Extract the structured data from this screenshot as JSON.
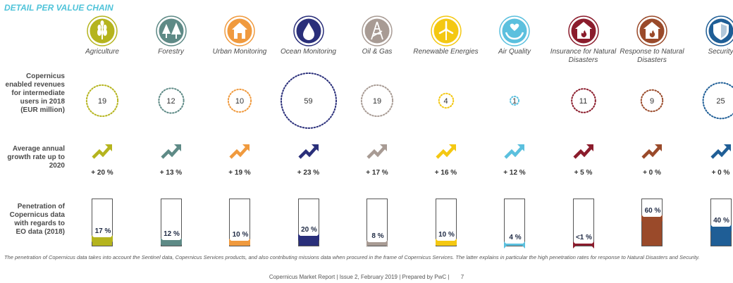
{
  "title": "DETAIL PER VALUE CHAIN",
  "row_labels": {
    "revenues": "Copernicus enabled revenues for intermediate users in 2018 (EUR million)",
    "growth": "Average annual growth rate up to 2020",
    "penetration": "Penetration of Copernicus data with regards to EO data (2018)"
  },
  "value_chains": [
    {
      "name": "Agriculture",
      "icon": "wheat-icon",
      "color": "#b5b41e",
      "revenue": "19",
      "revenue_value": 19,
      "growth": "+ 20 %",
      "penetration": "17 %",
      "penetration_value": 17
    },
    {
      "name": "Forestry",
      "icon": "trees-icon",
      "color": "#5e8a86",
      "revenue": "12",
      "revenue_value": 12,
      "growth": "+ 13 %",
      "penetration": "12 %",
      "penetration_value": 12
    },
    {
      "name": "Urban Monitoring",
      "icon": "house-icon",
      "color": "#f09a3e",
      "revenue": "10",
      "revenue_value": 10,
      "growth": "+ 19 %",
      "penetration": "10 %",
      "penetration_value": 10
    },
    {
      "name": "Ocean Monitoring",
      "icon": "water-drop-icon",
      "color": "#2a2f7a",
      "revenue": "59",
      "revenue_value": 59,
      "growth": "+ 23 %",
      "penetration": "20 %",
      "penetration_value": 20
    },
    {
      "name": "Oil & Gas",
      "icon": "oil-derrick-icon",
      "color": "#a89b94",
      "revenue": "19",
      "revenue_value": 19,
      "growth": "+ 17 %",
      "penetration": "8 %",
      "penetration_value": 8
    },
    {
      "name": "Renewable Energies",
      "icon": "wind-turbine-icon",
      "color": "#f4c812",
      "revenue": "4",
      "revenue_value": 4,
      "growth": "+ 16 %",
      "penetration": "10 %",
      "penetration_value": 10
    },
    {
      "name": "Air Quality",
      "icon": "hands-heart-icon",
      "color": "#5bc0de",
      "revenue": "1",
      "revenue_value": 1,
      "growth": "+ 12 %",
      "penetration": "4 %",
      "penetration_value": 4
    },
    {
      "name": "Insurance for Natural Disasters",
      "icon": "house-fire-icon",
      "color": "#8b1c2c",
      "revenue": "11",
      "revenue_value": 11,
      "growth": "+ 5 %",
      "penetration": "<1 %",
      "penetration_value": 1
    },
    {
      "name": "Response to Natural Disasters",
      "icon": "house-fire-icon",
      "color": "#9a4a2a",
      "revenue": "9",
      "revenue_value": 9,
      "growth": "+ 0 %",
      "penetration": "60 %",
      "penetration_value": 60
    },
    {
      "name": "Security",
      "icon": "shield-icon",
      "color": "#1f5e96",
      "revenue": "25",
      "revenue_value": 25,
      "growth": "+ 0 %",
      "penetration": "40 %",
      "penetration_value": 40
    }
  ],
  "footnote": "The penetration of Copernicus data takes into account the Sentinel data, Copernicus Services products, and also contributing missions data when procured in the frame of Copernicus Services. The latter explains in particular the high penetration rates for response to Natural Disasters and Security.",
  "footer": "Copernicus Market Report | Issue 2, February 2019 | Prepared by PwC |",
  "page_number": "7"
}
